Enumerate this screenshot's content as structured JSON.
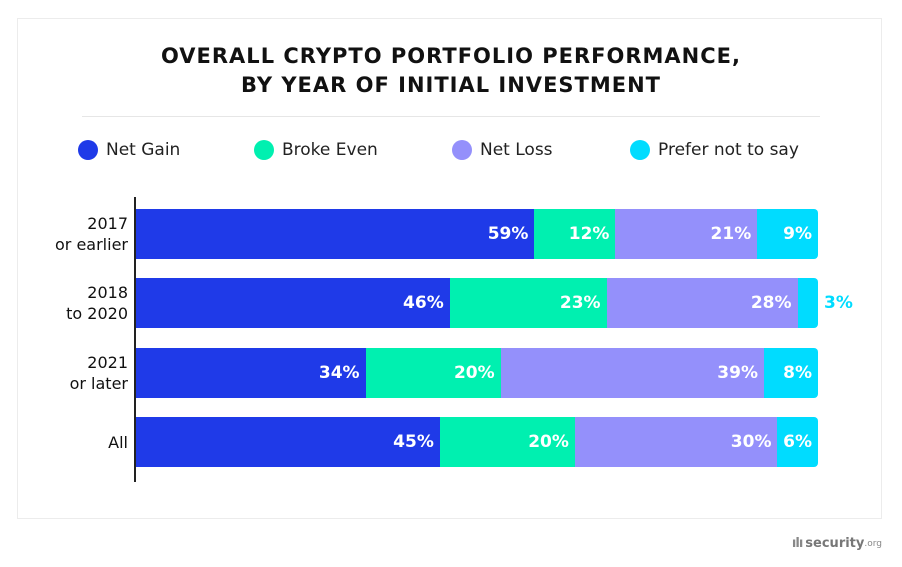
{
  "chart_data": {
    "type": "bar",
    "orientation": "horizontal",
    "stacked": true,
    "title": "OVERALL CRYPTO PORTFOLIO PERFORMANCE, BY YEAR OF INITIAL INVESTMENT",
    "title_lines": [
      "OVERALL CRYPTO PORTFOLIO PERFORMANCE,",
      "BY YEAR OF INITIAL INVESTMENT"
    ],
    "categories": [
      [
        "2017",
        "or earlier"
      ],
      [
        "2018",
        "to 2020"
      ],
      [
        "2021",
        "or later"
      ],
      [
        "All"
      ]
    ],
    "series": [
      {
        "name": "Net Gain",
        "color": "#1f3ae8",
        "values": [
          59,
          46,
          34,
          45
        ]
      },
      {
        "name": "Broke Even",
        "color": "#00f0b0",
        "values": [
          12,
          23,
          20,
          20
        ]
      },
      {
        "name": "Net Loss",
        "color": "#9490fb",
        "values": [
          21,
          28,
          39,
          30
        ]
      },
      {
        "name": "Prefer not to say",
        "color": "#00dcff",
        "values": [
          9,
          3,
          8,
          6
        ]
      }
    ],
    "unit": "%",
    "legend_position": "top",
    "grid": false
  },
  "brand": {
    "logo_text": "security",
    "logo_suffix": ".org"
  }
}
